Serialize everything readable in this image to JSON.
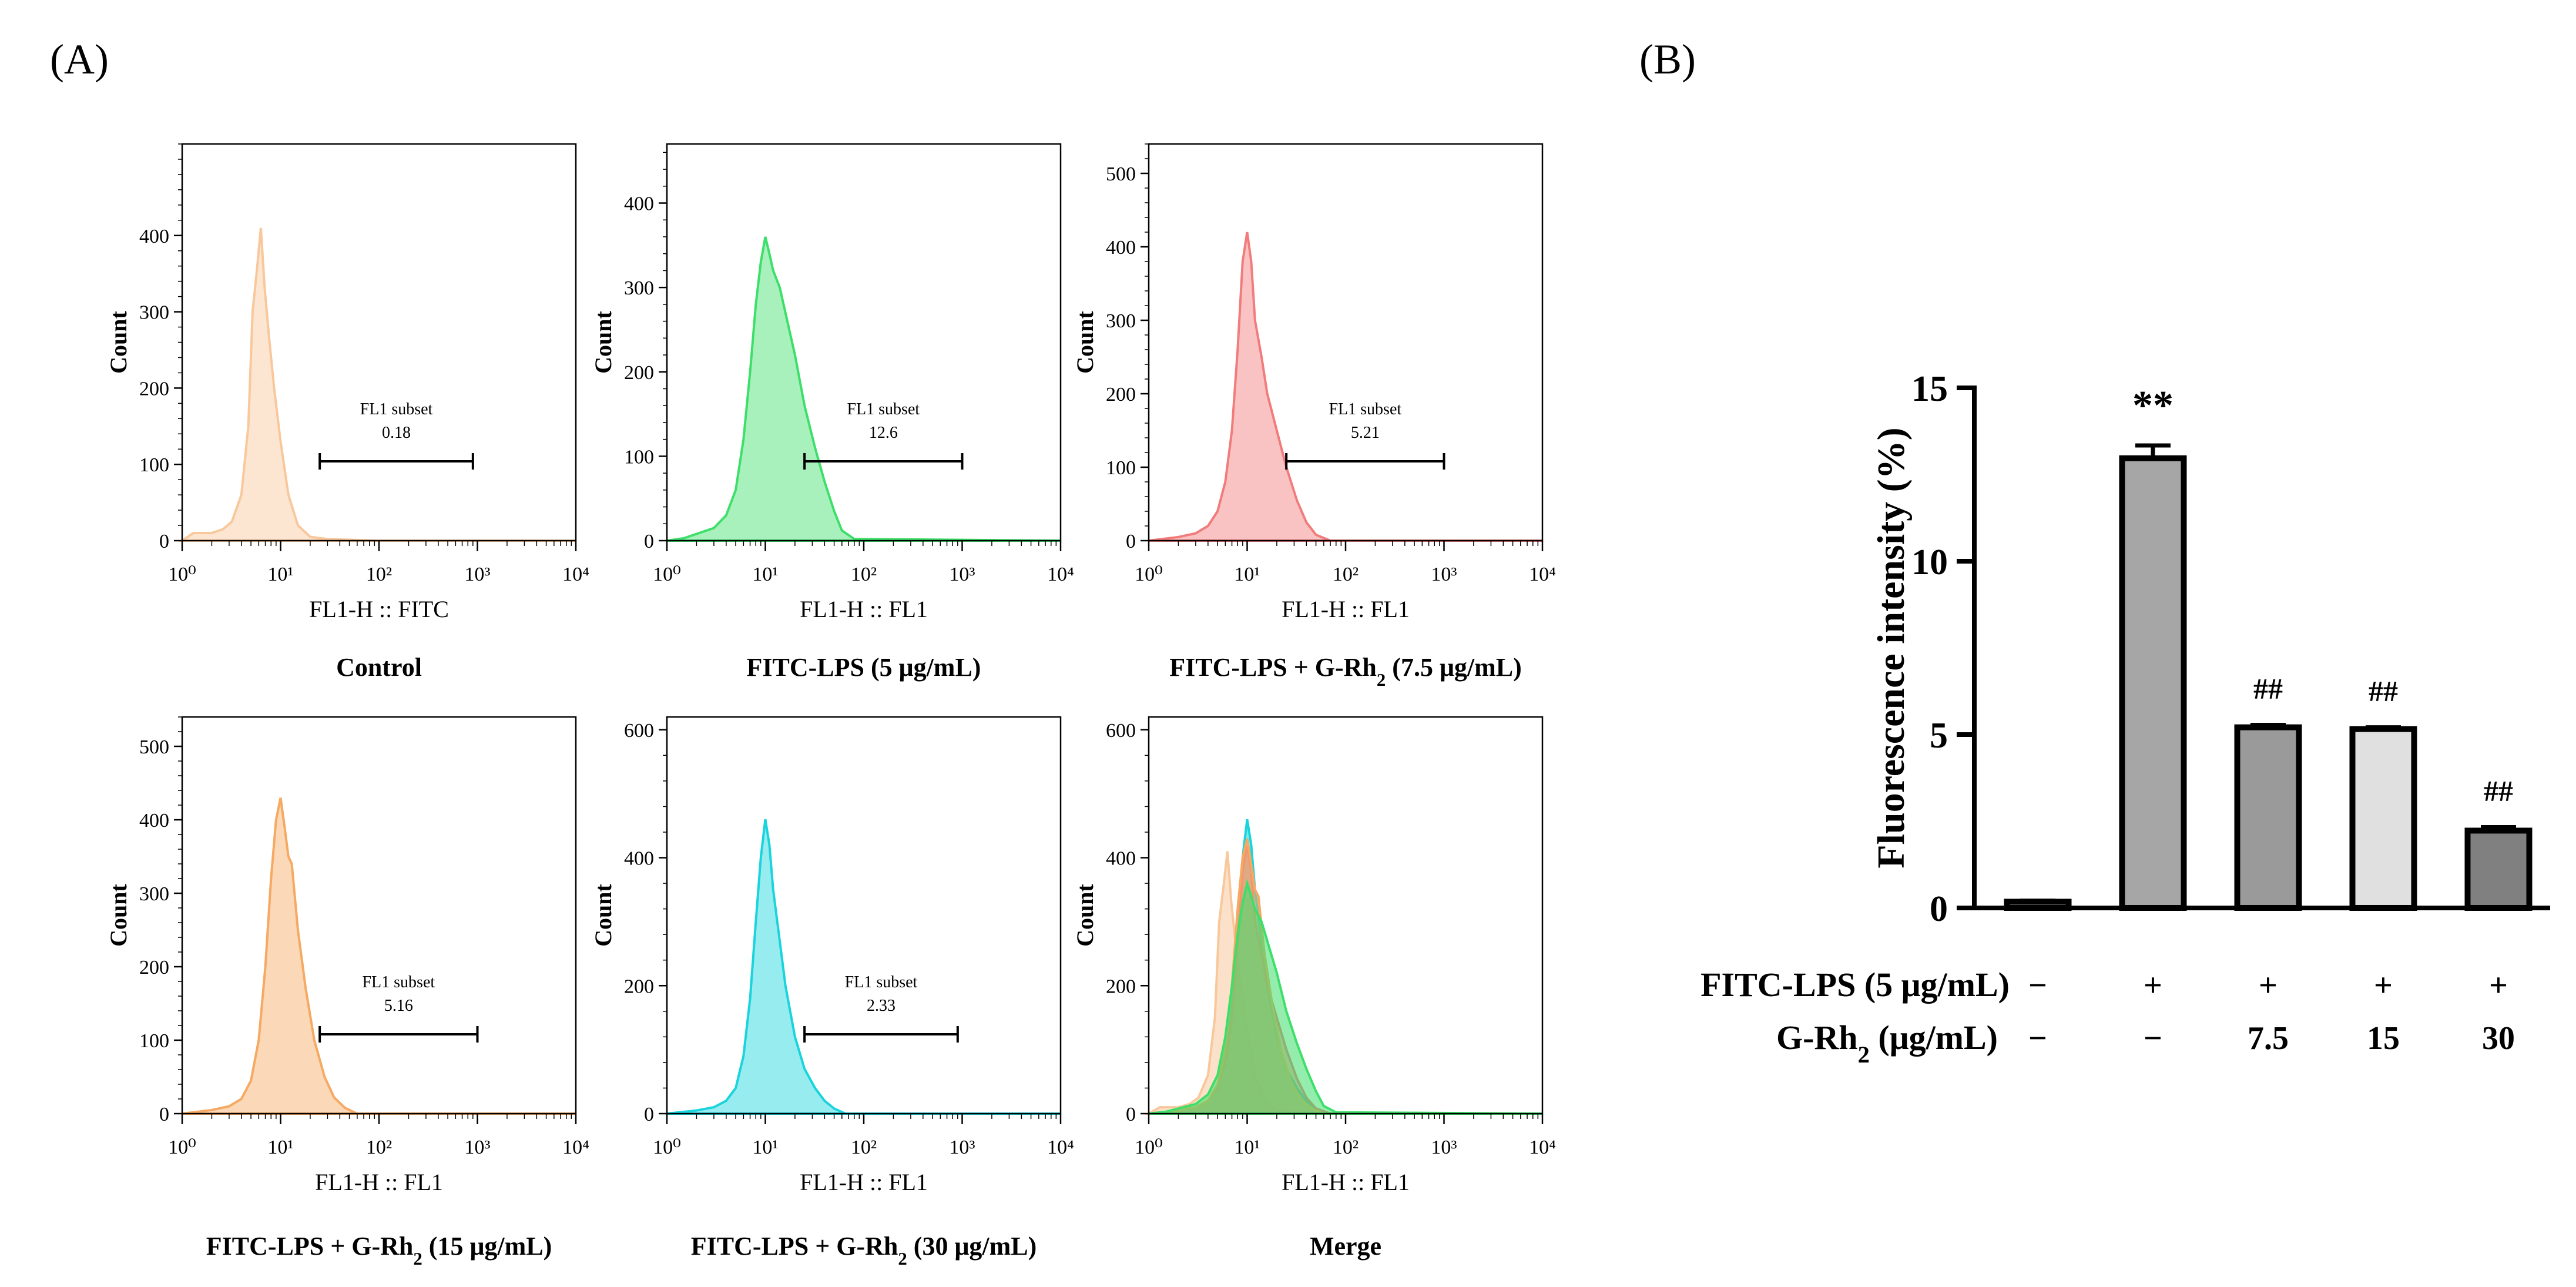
{
  "panel_labels": {
    "a": "(A)",
    "b": "(B)"
  },
  "chart_data": [
    {
      "type": "histogram",
      "id": "control",
      "caption": "Control",
      "xlabel": "FL1-H :: FITC",
      "ylabel": "Count",
      "xscale": "log",
      "xlim": [
        1,
        10000
      ],
      "ylim": [
        0,
        520
      ],
      "yticks": [
        0,
        100,
        200,
        300,
        400
      ],
      "xticks": [
        1,
        10,
        100,
        1000,
        10000
      ],
      "gate": {
        "label": "FL1 subset",
        "value": "0.18",
        "range": [
          25,
          900
        ]
      },
      "series": [
        {
          "name": "Control",
          "color": "#f8c89c",
          "x": [
            1,
            1.3,
            2,
            2.6,
            3.2,
            4,
            4.7,
            5.2,
            5.8,
            6.3,
            6.9,
            7.6,
            8.6,
            10,
            12,
            15,
            20,
            30,
            100,
            10000
          ],
          "y": [
            0,
            10,
            10,
            15,
            25,
            60,
            150,
            300,
            360,
            410,
            330,
            270,
            200,
            130,
            60,
            20,
            5,
            2,
            0,
            0
          ]
        }
      ]
    },
    {
      "type": "histogram",
      "id": "fitc-lps",
      "caption": "FITC-LPS (5 μg/mL)",
      "xlabel": "FL1-H :: FL1",
      "ylabel": "Count",
      "xscale": "log",
      "xlim": [
        1,
        10000
      ],
      "ylim": [
        0,
        470
      ],
      "yticks": [
        0,
        100,
        200,
        300,
        400
      ],
      "xticks": [
        1,
        10,
        100,
        1000,
        10000
      ],
      "gate": {
        "label": "FL1 subset",
        "value": "12.6",
        "range": [
          25,
          1000
        ]
      },
      "series": [
        {
          "name": "FITC-LPS",
          "color": "#3ddf6a",
          "x": [
            1,
            1.5,
            2,
            3,
            4,
            5,
            6,
            7,
            8,
            9,
            10,
            11,
            12,
            14,
            16,
            20,
            25,
            32,
            40,
            50,
            60,
            80,
            10000
          ],
          "y": [
            0,
            3,
            8,
            15,
            30,
            60,
            120,
            200,
            280,
            330,
            360,
            340,
            320,
            300,
            270,
            220,
            160,
            110,
            70,
            35,
            12,
            2,
            0
          ]
        }
      ]
    },
    {
      "type": "histogram",
      "id": "g-rh2-7-5",
      "caption": "FITC-LPS + G-Rh2 (7.5 μg/mL)",
      "xlabel": "FL1-H :: FL1",
      "ylabel": "Count",
      "xscale": "log",
      "xlim": [
        1,
        10000
      ],
      "ylim": [
        0,
        540
      ],
      "yticks": [
        0,
        100,
        200,
        300,
        400,
        500
      ],
      "xticks": [
        1,
        10,
        100,
        1000,
        10000
      ],
      "gate": {
        "label": "FL1 subset",
        "value": "5.21",
        "range": [
          25,
          1000
        ]
      },
      "series": [
        {
          "name": "G-Rh2 7.5",
          "color": "#f27b7b",
          "x": [
            1,
            2,
            3,
            4,
            5,
            6,
            7,
            8,
            9,
            10,
            11,
            12,
            14,
            16,
            20,
            25,
            32,
            40,
            50,
            70,
            10000
          ],
          "y": [
            0,
            5,
            10,
            20,
            40,
            80,
            150,
            260,
            380,
            420,
            380,
            300,
            250,
            200,
            150,
            100,
            55,
            25,
            8,
            0,
            0
          ]
        }
      ]
    },
    {
      "type": "histogram",
      "id": "g-rh2-15",
      "caption": "FITC-LPS + G-Rh2 (15 μg/mL)",
      "xlabel": "FL1-H :: FL1",
      "ylabel": "Count",
      "xscale": "log",
      "xlim": [
        1,
        10000
      ],
      "ylim": [
        0,
        540
      ],
      "yticks": [
        0,
        100,
        200,
        300,
        400,
        500
      ],
      "xticks": [
        1,
        10,
        100,
        1000,
        10000
      ],
      "gate": {
        "label": "FL1 subset",
        "value": "5.16",
        "range": [
          25,
          1000
        ]
      },
      "series": [
        {
          "name": "G-Rh2 15",
          "color": "#f5a962",
          "x": [
            1,
            2,
            3,
            4,
            5,
            6,
            7,
            8,
            9,
            10,
            11,
            12,
            13,
            15,
            18,
            22,
            28,
            35,
            45,
            60,
            10000
          ],
          "y": [
            0,
            5,
            10,
            20,
            45,
            100,
            200,
            320,
            400,
            430,
            390,
            350,
            340,
            250,
            170,
            100,
            50,
            22,
            8,
            0,
            0
          ]
        }
      ]
    },
    {
      "type": "histogram",
      "id": "g-rh2-30",
      "caption": "FITC-LPS + G-Rh2 (30 μg/mL)",
      "xlabel": "FL1-H :: FL1",
      "ylabel": "Count",
      "xscale": "log",
      "xlim": [
        1,
        10000
      ],
      "ylim": [
        0,
        620
      ],
      "yticks": [
        0,
        200,
        400,
        600
      ],
      "xticks": [
        1,
        10,
        100,
        1000,
        10000
      ],
      "gate": {
        "label": "FL1 subset",
        "value": "2.33",
        "range": [
          25,
          900
        ]
      },
      "series": [
        {
          "name": "G-Rh2 30",
          "color": "#19d4dc",
          "x": [
            1,
            2,
            3,
            4,
            5,
            6,
            7,
            8,
            9,
            10,
            11,
            12,
            14,
            16,
            20,
            25,
            32,
            40,
            50,
            65,
            10000
          ],
          "y": [
            0,
            5,
            10,
            20,
            40,
            90,
            180,
            300,
            400,
            460,
            420,
            350,
            270,
            200,
            120,
            70,
            40,
            20,
            8,
            0,
            0
          ]
        }
      ]
    },
    {
      "type": "histogram",
      "id": "merge",
      "caption": "Merge",
      "xlabel": "FL1-H :: FL1",
      "ylabel": "Count",
      "xscale": "log",
      "xlim": [
        1,
        10000
      ],
      "ylim": [
        0,
        620
      ],
      "yticks": [
        0,
        200,
        400,
        600
      ],
      "xticks": [
        1,
        10,
        100,
        1000,
        10000
      ],
      "series": [
        {
          "name": "Control",
          "color": "#f8c89c",
          "x": [
            1,
            1.3,
            2,
            2.6,
            3.2,
            4,
            4.7,
            5.2,
            5.8,
            6.3,
            6.9,
            7.6,
            8.6,
            10,
            12,
            15,
            20,
            30,
            100,
            10000
          ],
          "y": [
            0,
            10,
            10,
            15,
            25,
            60,
            150,
            300,
            360,
            410,
            330,
            270,
            200,
            130,
            60,
            20,
            5,
            2,
            0,
            0
          ]
        },
        {
          "name": "G-Rh2 30",
          "color": "#19d4dc",
          "x": [
            1,
            2,
            3,
            4,
            5,
            6,
            7,
            8,
            9,
            10,
            11,
            12,
            14,
            16,
            20,
            25,
            32,
            40,
            50,
            65,
            10000
          ],
          "y": [
            0,
            5,
            10,
            20,
            40,
            90,
            180,
            300,
            400,
            460,
            420,
            350,
            270,
            200,
            120,
            70,
            40,
            20,
            8,
            0,
            0
          ]
        },
        {
          "name": "G-Rh2 7.5",
          "color": "#f27b7b",
          "x": [
            1,
            2,
            3,
            4,
            5,
            6,
            7,
            8,
            9,
            10,
            11,
            12,
            14,
            16,
            20,
            25,
            32,
            40,
            50,
            70,
            10000
          ],
          "y": [
            0,
            5,
            10,
            20,
            40,
            80,
            150,
            260,
            380,
            420,
            380,
            300,
            250,
            200,
            150,
            100,
            55,
            25,
            8,
            0,
            0
          ]
        },
        {
          "name": "G-Rh2 15",
          "color": "#f5a962",
          "x": [
            1,
            2,
            3,
            4,
            5,
            6,
            7,
            8,
            9,
            10,
            11,
            12,
            13,
            15,
            18,
            22,
            28,
            35,
            45,
            60,
            10000
          ],
          "y": [
            0,
            5,
            10,
            20,
            45,
            100,
            200,
            320,
            400,
            430,
            390,
            350,
            340,
            250,
            170,
            100,
            50,
            22,
            8,
            0,
            0
          ]
        },
        {
          "name": "FITC-LPS",
          "color": "#3ddf6a",
          "x": [
            1,
            1.5,
            2,
            3,
            4,
            5,
            6,
            7,
            8,
            9,
            10,
            11,
            12,
            14,
            16,
            20,
            25,
            32,
            40,
            50,
            60,
            80,
            10000
          ],
          "y": [
            0,
            3,
            8,
            15,
            30,
            60,
            120,
            200,
            280,
            330,
            360,
            340,
            320,
            300,
            270,
            220,
            160,
            110,
            70,
            35,
            12,
            2,
            0
          ]
        }
      ]
    },
    {
      "type": "bar",
      "id": "fluorescence-bar",
      "ylabel": "Fluorescence intensity (%)",
      "ylim": [
        0,
        15
      ],
      "yticks": [
        0,
        5,
        10,
        15
      ],
      "values": [
        0.18,
        12.97,
        5.21,
        5.16,
        2.23
      ],
      "errors": [
        0.03,
        0.37,
        0.07,
        0.05,
        0.1
      ],
      "colors": [
        "#a8a8a8",
        "#a6a6a6",
        "#9a9a9a",
        "#e0e0e0",
        "#808080"
      ],
      "annotations": [
        "",
        "**",
        "##",
        "##",
        "##"
      ],
      "table": {
        "row1_label": "FITC-LPS (5 μg/mL)",
        "row1": [
          "−",
          "+",
          "+",
          "+",
          "+"
        ],
        "row2_label": "G-Rh2 (μg/mL)",
        "row2": [
          "−",
          "−",
          "7.5",
          "15",
          "30"
        ]
      }
    }
  ]
}
